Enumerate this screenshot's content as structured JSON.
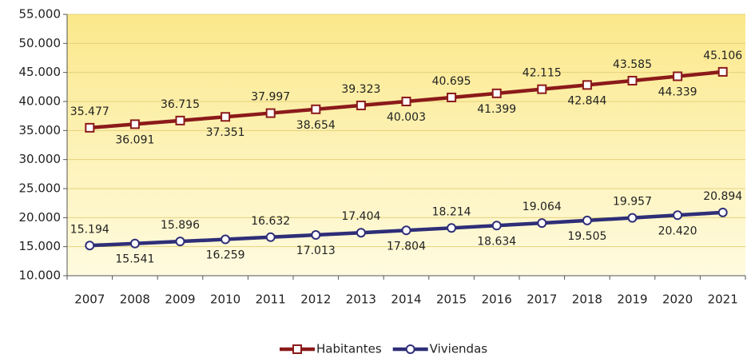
{
  "chart_data": {
    "type": "line",
    "categories": [
      "2007",
      "2008",
      "2009",
      "2010",
      "2011",
      "2012",
      "2013",
      "2014",
      "2015",
      "2016",
      "2017",
      "2018",
      "2019",
      "2020",
      "2021"
    ],
    "series": [
      {
        "name": "Habitantes",
        "color": "#8b1a1a",
        "marker": "square",
        "values": [
          35477,
          36091,
          36715,
          37351,
          37997,
          38654,
          39323,
          40003,
          40695,
          41399,
          42115,
          42844,
          43585,
          44339,
          45106
        ],
        "value_labels": [
          "35.477",
          "36.091",
          "36.715",
          "37.351",
          "37.997",
          "38.654",
          "39.323",
          "40.003",
          "40.695",
          "41.399",
          "42.115",
          "42.844",
          "43.585",
          "44.339",
          "45.106"
        ]
      },
      {
        "name": "Viviendas",
        "color": "#2e2e78",
        "marker": "circle",
        "values": [
          15194,
          15541,
          15896,
          16259,
          16632,
          17013,
          17404,
          17804,
          18214,
          18634,
          19064,
          19505,
          19957,
          20420,
          20894
        ],
        "value_labels": [
          "15.194",
          "15.541",
          "15.896",
          "16.259",
          "16.632",
          "17.013",
          "17.404",
          "17.804",
          "18.214",
          "18.634",
          "19.064",
          "19.505",
          "19.957",
          "20.420",
          "20.894"
        ]
      }
    ],
    "ylim": [
      10000,
      55000
    ],
    "yticks": [
      {
        "value": 10000,
        "label": "10.000"
      },
      {
        "value": 15000,
        "label": "15.000"
      },
      {
        "value": 20000,
        "label": "20.000"
      },
      {
        "value": 25000,
        "label": "25.000"
      },
      {
        "value": 30000,
        "label": "30.000"
      },
      {
        "value": 35000,
        "label": "35.000"
      },
      {
        "value": 40000,
        "label": "40.000"
      },
      {
        "value": 45000,
        "label": "45.000"
      },
      {
        "value": 50000,
        "label": "50.000"
      },
      {
        "value": 55000,
        "label": "55.000"
      }
    ],
    "grid": true,
    "legend": "bottom"
  }
}
